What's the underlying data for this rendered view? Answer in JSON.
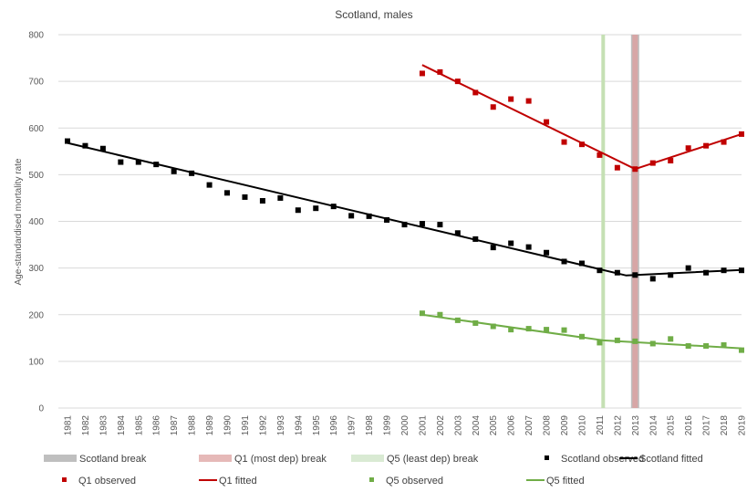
{
  "chart_data": {
    "type": "scatter",
    "title": "Scotland, males",
    "xlabel": "",
    "ylabel": "Age-standardised mortality rate",
    "ylim": [
      0,
      800
    ],
    "yticks": [
      "0",
      "100",
      "200",
      "300",
      "400",
      "500",
      "600",
      "700",
      "800"
    ],
    "years": [
      "1981",
      "1982",
      "1983",
      "1984",
      "1985",
      "1986",
      "1987",
      "1988",
      "1989",
      "1990",
      "1991",
      "1992",
      "1993",
      "1994",
      "1995",
      "1996",
      "1997",
      "1998",
      "1999",
      "2000",
      "2001",
      "2002",
      "2003",
      "2004",
      "2005",
      "2006",
      "2007",
      "2008",
      "2009",
      "2010",
      "2011",
      "2012",
      "2013",
      "2014",
      "2015",
      "2016",
      "2017",
      "2018",
      "2019"
    ],
    "grid": "horizontal",
    "legend_position": "bottom",
    "breaks": [
      {
        "name": "Scotland break",
        "year": 2013,
        "color": "#bfbfbf"
      },
      {
        "name": "Q1 (most dep) break",
        "year": 2013,
        "color": "#d9a3a3"
      },
      {
        "name": "Q5 (least dep) break",
        "year": 2011.2,
        "color": "#c5e0b4"
      }
    ],
    "series": [
      {
        "name": "Scotland observed",
        "kind": "observed",
        "color": "#000000",
        "x": [
          1981,
          1982,
          1983,
          1984,
          1985,
          1986,
          1987,
          1988,
          1989,
          1990,
          1991,
          1992,
          1993,
          1994,
          1995,
          1996,
          1997,
          1998,
          1999,
          2000,
          2001,
          2002,
          2003,
          2004,
          2005,
          2006,
          2007,
          2008,
          2009,
          2010,
          2011,
          2012,
          2013,
          2014,
          2015,
          2016,
          2017,
          2018,
          2019
        ],
        "values": [
          572,
          562,
          556,
          527,
          527,
          522,
          507,
          503,
          478,
          461,
          452,
          444,
          450,
          424,
          428,
          432,
          412,
          411,
          403,
          393,
          395,
          393,
          375,
          362,
          344,
          353,
          345,
          333,
          314,
          310,
          295,
          290,
          285,
          277,
          285,
          300,
          290,
          295,
          295
        ]
      },
      {
        "name": "Scotland fitted",
        "kind": "fitted",
        "color": "#000000",
        "x": [
          1981,
          2012.5,
          2019
        ],
        "values": [
          568,
          284,
          296
        ]
      },
      {
        "name": "Q1 observed",
        "kind": "observed",
        "color": "#c00000",
        "x": [
          2001,
          2002,
          2003,
          2004,
          2005,
          2006,
          2007,
          2008,
          2009,
          2010,
          2011,
          2012,
          2013,
          2014,
          2015,
          2016,
          2017,
          2018,
          2019
        ],
        "values": [
          717,
          720,
          700,
          676,
          645,
          662,
          658,
          613,
          570,
          565,
          542,
          515,
          512,
          525,
          530,
          557,
          562,
          570,
          587
        ]
      },
      {
        "name": "Q1 fitted",
        "kind": "fitted",
        "color": "#c00000",
        "x": [
          2001,
          2013,
          2019
        ],
        "values": [
          735,
          512,
          587
        ]
      },
      {
        "name": "Q5 observed",
        "kind": "observed",
        "color": "#70ad47",
        "x": [
          2001,
          2002,
          2003,
          2004,
          2005,
          2006,
          2007,
          2008,
          2009,
          2010,
          2011,
          2012,
          2013,
          2014,
          2015,
          2016,
          2017,
          2018,
          2019
        ],
        "values": [
          203,
          200,
          188,
          182,
          175,
          168,
          170,
          168,
          167,
          153,
          140,
          145,
          143,
          138,
          148,
          133,
          133,
          135,
          124
        ]
      },
      {
        "name": "Q5 fitted",
        "kind": "fitted",
        "color": "#70ad47",
        "x": [
          2001,
          2011.2,
          2019
        ],
        "values": [
          200,
          145,
          128
        ]
      }
    ],
    "legend": [
      {
        "label": "Scotland break",
        "kind": "break",
        "color": "#bfbfbf"
      },
      {
        "label": "Q1 (most dep) break",
        "kind": "break",
        "color": "#e6b9b8"
      },
      {
        "label": "Q5 (least dep) break",
        "kind": "break",
        "color": "#d9ead3"
      },
      {
        "label": "Scotland observed",
        "kind": "observed",
        "color": "#000000"
      },
      {
        "label": "Scotland fitted",
        "kind": "fitted",
        "color": "#000000"
      },
      {
        "label": "Q1 observed",
        "kind": "observed",
        "color": "#c00000"
      },
      {
        "label": "Q1 fitted",
        "kind": "fitted",
        "color": "#c00000"
      },
      {
        "label": "Q5 observed",
        "kind": "observed",
        "color": "#70ad47"
      },
      {
        "label": "Q5 fitted",
        "kind": "fitted",
        "color": "#70ad47"
      }
    ]
  }
}
